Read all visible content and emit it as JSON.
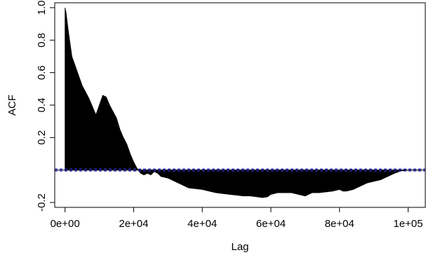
{
  "chart_data": {
    "type": "area",
    "title": "",
    "xlabel": "Lag",
    "ylabel": "ACF",
    "xlim": [
      -3000,
      105000
    ],
    "ylim": [
      -0.23,
      1.03
    ],
    "grid": false,
    "legend": "none",
    "x_ticks": [
      {
        "value": 0,
        "label": "0e+00"
      },
      {
        "value": 20000,
        "label": "2e+04"
      },
      {
        "value": 40000,
        "label": "4e+04"
      },
      {
        "value": 60000,
        "label": "6e+04"
      },
      {
        "value": 80000,
        "label": "8e+04"
      },
      {
        "value": 100000,
        "label": "1e+05"
      }
    ],
    "y_ticks": [
      {
        "value": -0.2,
        "label": "-0.2"
      },
      {
        "value": 0.2,
        "label": "0.2"
      },
      {
        "value": 0.4,
        "label": "0.4"
      },
      {
        "value": 0.6,
        "label": "0.6"
      },
      {
        "value": 0.8,
        "label": "0.8"
      },
      {
        "value": 1.0,
        "label": "1.0"
      }
    ],
    "confidence_band": 0.006,
    "colors": {
      "acf_fill": "#000000",
      "confidence_line": "#2c2cc8",
      "zero_line": "#000000"
    },
    "series": [
      {
        "x": [
          0,
          300,
          1000,
          2000,
          3000,
          4000,
          5000,
          6000,
          7000,
          8000,
          9000,
          10000,
          11000,
          12000,
          13000,
          14000,
          15000,
          16000,
          17000,
          18000,
          19000,
          20000,
          21000,
          22000,
          23000,
          24000,
          25000,
          26000,
          27000,
          28000,
          30000,
          32000,
          34000,
          36000,
          38000,
          40000,
          42000,
          44000,
          46000,
          48000,
          50000,
          52000,
          54000,
          56000,
          57500,
          59000,
          60000,
          62000,
          64000,
          66000,
          68000,
          70000,
          72000,
          74000,
          76000,
          78000,
          80000,
          81000,
          82000,
          84000,
          86000,
          88000,
          90000,
          92000,
          94000,
          96000,
          98000,
          100000,
          102000,
          104000
        ],
        "values": [
          1.0,
          0.97,
          0.85,
          0.7,
          0.64,
          0.58,
          0.52,
          0.48,
          0.44,
          0.39,
          0.34,
          0.4,
          0.46,
          0.45,
          0.4,
          0.36,
          0.32,
          0.25,
          0.2,
          0.16,
          0.1,
          0.05,
          0.01,
          -0.02,
          -0.03,
          -0.02,
          -0.03,
          -0.01,
          -0.02,
          -0.04,
          -0.05,
          -0.07,
          -0.09,
          -0.11,
          -0.115,
          -0.12,
          -0.13,
          -0.14,
          -0.145,
          -0.15,
          -0.155,
          -0.16,
          -0.16,
          -0.165,
          -0.17,
          -0.165,
          -0.15,
          -0.14,
          -0.14,
          -0.14,
          -0.15,
          -0.16,
          -0.14,
          -0.14,
          -0.135,
          -0.13,
          -0.12,
          -0.13,
          -0.13,
          -0.12,
          -0.1,
          -0.08,
          -0.07,
          -0.06,
          -0.04,
          -0.02,
          -0.005,
          0.0,
          0.0,
          0.0
        ]
      }
    ]
  }
}
